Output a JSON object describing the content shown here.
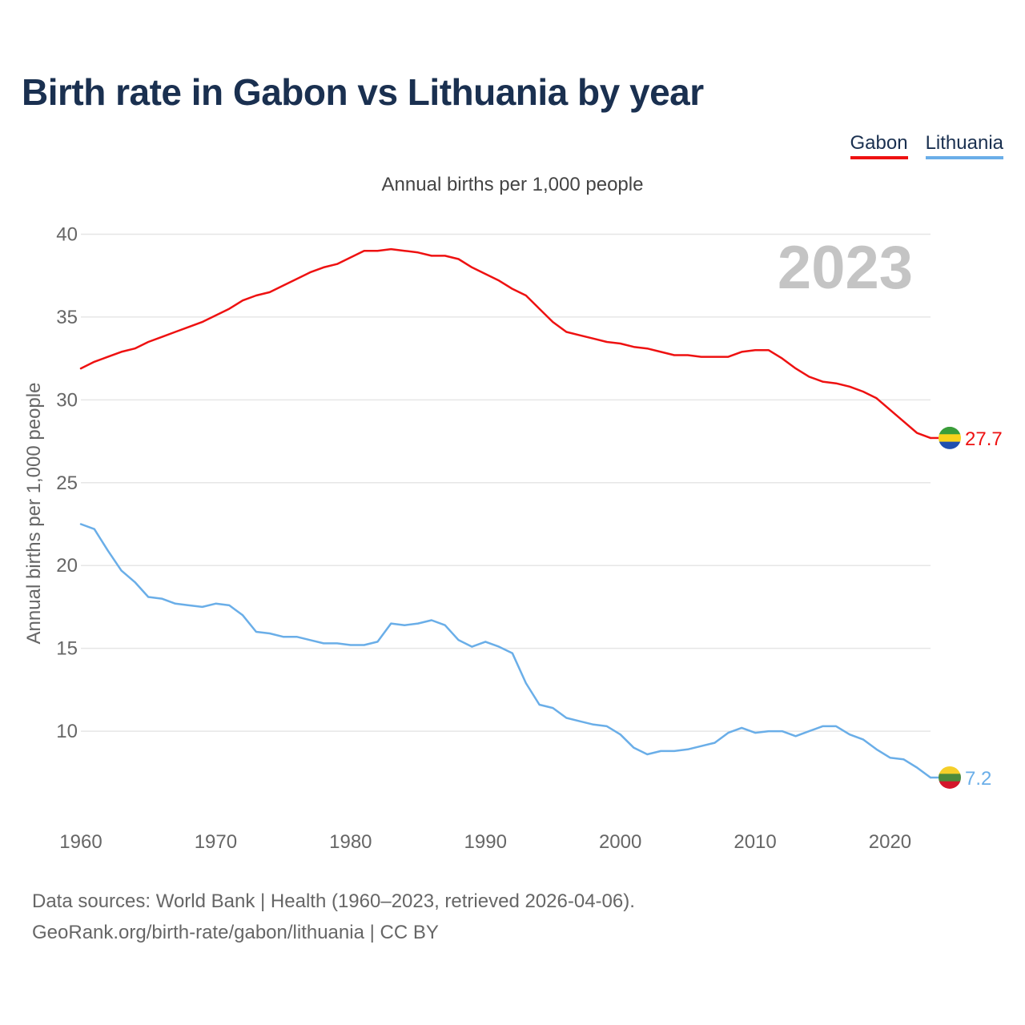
{
  "title": "Birth rate in Gabon vs Lithuania by year",
  "legend": {
    "gabon": "Gabon",
    "lithuania": "Lithuania"
  },
  "subtitle": "Annual births per 1,000 people",
  "year_badge": "2023",
  "footer": {
    "line1": "Data sources: World Bank | Health (1960–2023, retrieved 2026-04-06).",
    "line2": "GeoRank.org/birth-rate/gabon/lithuania | CC BY"
  },
  "colors": {
    "gabon": "#ee1111",
    "lithuania": "#6aaee8",
    "grid": "#e6e6e6",
    "axis_text": "#666666",
    "badge": "#c4c4c4"
  },
  "chart_data": {
    "type": "line",
    "title": "Birth rate in Gabon vs Lithuania by year",
    "xlabel": "",
    "ylabel": "Annual births per 1,000 people",
    "xlim": [
      1960,
      2023
    ],
    "ylim": [
      5,
      40
    ],
    "yticks": [
      10,
      15,
      20,
      25,
      30,
      35,
      40
    ],
    "xticks": [
      1960,
      1970,
      1980,
      1990,
      2000,
      2010,
      2020
    ],
    "x": [
      1960,
      1961,
      1962,
      1963,
      1964,
      1965,
      1966,
      1967,
      1968,
      1969,
      1970,
      1971,
      1972,
      1973,
      1974,
      1975,
      1976,
      1977,
      1978,
      1979,
      1980,
      1981,
      1982,
      1983,
      1984,
      1985,
      1986,
      1987,
      1988,
      1989,
      1990,
      1991,
      1992,
      1993,
      1994,
      1995,
      1996,
      1997,
      1998,
      1999,
      2000,
      2001,
      2002,
      2003,
      2004,
      2005,
      2006,
      2007,
      2008,
      2009,
      2010,
      2011,
      2012,
      2013,
      2014,
      2015,
      2016,
      2017,
      2018,
      2019,
      2020,
      2021,
      2022,
      2023
    ],
    "series": [
      {
        "name": "Gabon",
        "color": "#ee1111",
        "end_label": "27.7",
        "values": [
          31.9,
          32.3,
          32.6,
          32.9,
          33.1,
          33.5,
          33.8,
          34.1,
          34.4,
          34.7,
          35.1,
          35.5,
          36.0,
          36.3,
          36.5,
          36.9,
          37.3,
          37.7,
          38.0,
          38.2,
          38.6,
          39.0,
          39.0,
          39.1,
          39.0,
          38.9,
          38.7,
          38.7,
          38.5,
          38.0,
          37.6,
          37.2,
          36.7,
          36.3,
          35.5,
          34.7,
          34.1,
          33.9,
          33.7,
          33.5,
          33.4,
          33.2,
          33.1,
          32.9,
          32.7,
          32.7,
          32.6,
          32.6,
          32.6,
          32.9,
          33.0,
          33.0,
          32.5,
          31.9,
          31.4,
          31.1,
          31.0,
          30.8,
          30.5,
          30.1,
          29.4,
          28.7,
          28.0,
          27.7
        ]
      },
      {
        "name": "Lithuania",
        "color": "#6aaee8",
        "end_label": "7.2",
        "values": [
          22.5,
          22.2,
          20.9,
          19.7,
          19.0,
          18.1,
          18.0,
          17.7,
          17.6,
          17.5,
          17.7,
          17.6,
          17.0,
          16.0,
          15.9,
          15.7,
          15.7,
          15.5,
          15.3,
          15.3,
          15.2,
          15.2,
          15.4,
          16.5,
          16.4,
          16.5,
          16.7,
          16.4,
          15.5,
          15.1,
          15.4,
          15.1,
          14.7,
          12.9,
          11.6,
          11.4,
          10.8,
          10.6,
          10.4,
          10.3,
          9.8,
          9.0,
          8.6,
          8.8,
          8.8,
          8.9,
          9.1,
          9.3,
          9.9,
          10.2,
          9.9,
          10.0,
          10.0,
          9.7,
          10.0,
          10.3,
          10.3,
          9.8,
          9.5,
          8.9,
          8.4,
          8.3,
          7.8,
          7.2
        ]
      }
    ]
  }
}
